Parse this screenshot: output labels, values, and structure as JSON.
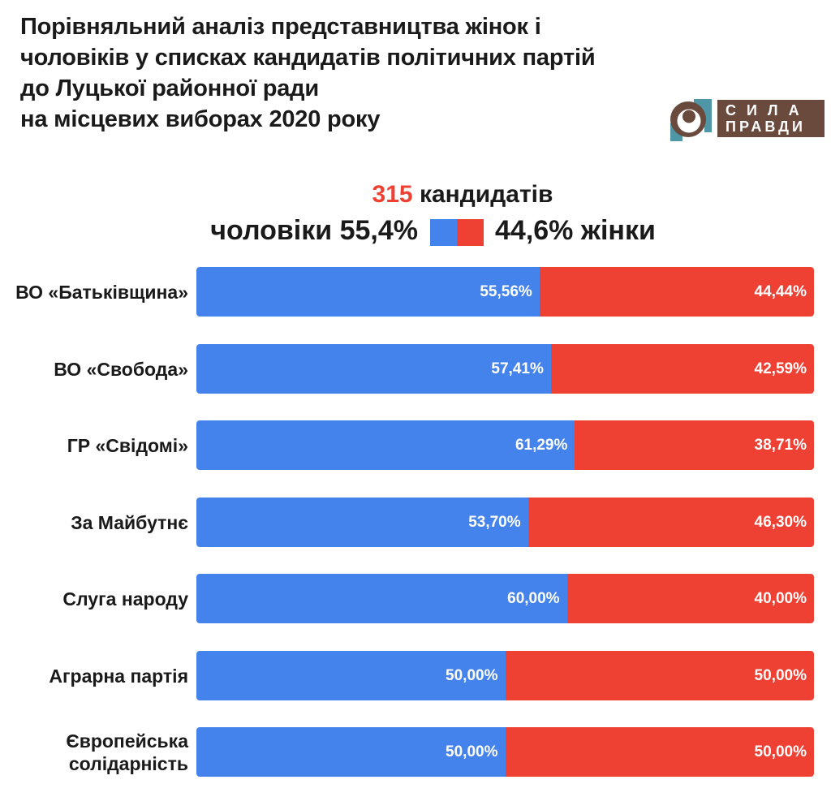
{
  "header": {
    "title_lines": [
      "Порівняльний аналіз представництва жінок і",
      "чоловіків у списках кандидатів політичних партій",
      "до Луцької районної ради",
      "на місцевих виборах 2020 року"
    ],
    "logo": {
      "line1": "СИЛА",
      "line2": "ПРАВДИ"
    }
  },
  "legend": {
    "total_number": "315",
    "total_suffix": " кандидатів",
    "men_label": "чоловіки 55,4%",
    "women_label": "44,6% жінки"
  },
  "colors": {
    "men_blue": "#4583EC",
    "women_red": "#EE4033",
    "accent_red": "#EE4033",
    "text_dark": "#1a1a1a",
    "logo_teal": "#4f97a7",
    "logo_brown": "#6b4a3e"
  },
  "chart_data": {
    "type": "bar",
    "orientation": "horizontal-stacked",
    "title": "315 кандидатів",
    "subtitle": "чоловіки 55,4% / 44,6% жінки",
    "total_candidates": 315,
    "men_total_share_pct": 55.4,
    "women_total_share_pct": 44.6,
    "xlim": [
      0,
      100
    ],
    "grid": false,
    "legend_position": "top-center",
    "categories": [
      "ВО «Батьківщина»",
      "ВО «Свобода»",
      "ГР «Свідомі»",
      "За Майбутнє",
      "Слуга народу",
      "Аграрна партія",
      "Європейська солідарність"
    ],
    "series": [
      {
        "name": "чоловіки",
        "color": "#4583EC",
        "values": [
          55.56,
          57.41,
          61.29,
          53.7,
          60.0,
          50.0,
          50.0
        ],
        "labels": [
          "55,56%",
          "57,41%",
          "61,29%",
          "53,70%",
          "60,00%",
          "50,00%",
          "50,00%"
        ]
      },
      {
        "name": "жінки",
        "color": "#EE4033",
        "values": [
          44.44,
          42.59,
          38.71,
          46.3,
          40.0,
          50.0,
          50.0
        ],
        "labels": [
          "44,44%",
          "42,59%",
          "38,71%",
          "46,30%",
          "40,00%",
          "50,00%",
          "50,00%"
        ]
      }
    ]
  }
}
